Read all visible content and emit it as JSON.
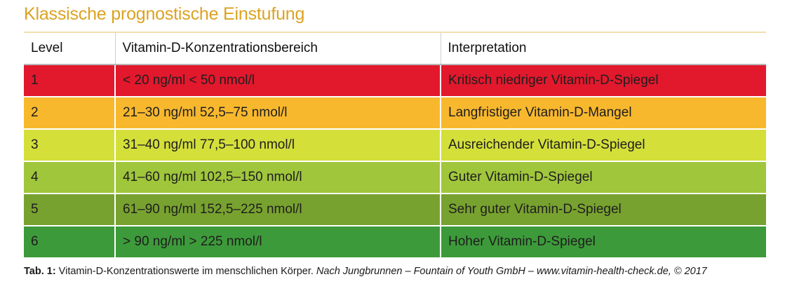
{
  "title": "Klassische prognostische Einstufung",
  "table": {
    "headers": [
      "Level",
      "Vitamin-D-Konzentrationsbereich",
      "Interpretation"
    ],
    "rows": [
      {
        "level": "1",
        "range": "< 20 ng/ml < 50 nmol/l",
        "interpretation": "Kritisch niedriger Vitamin-D-Spiegel",
        "color": "#e2182d"
      },
      {
        "level": "2",
        "range": "21–30 ng/ml 52,5–75 nmol/l",
        "interpretation": "Langfristiger Vitamin-D-Mangel",
        "color": "#f8b82e"
      },
      {
        "level": "3",
        "range": "31–40 ng/ml 77,5–100 nmol/l",
        "interpretation": "Ausreichender Vitamin-D-Spiegel",
        "color": "#d4df3a"
      },
      {
        "level": "4",
        "range": "41–60 ng/ml 102,5–150 nmol/l",
        "interpretation": "Guter Vitamin-D-Spiegel",
        "color": "#a0c63c"
      },
      {
        "level": "5",
        "range": "61–90 ng/ml 152,5–225 nmol/l",
        "interpretation": "Sehr guter Vitamin-D-Spiegel",
        "color": "#78a22f"
      },
      {
        "level": "6",
        "range": "> 90 ng/ml > 225 nmol/l",
        "interpretation": "Hoher Vitamin-D-Spiegel",
        "color": "#3d9a3a"
      }
    ]
  },
  "caption": {
    "label": "Tab. 1:",
    "text": " Vitamin-D-Konzentrationswerte im menschlichen Körper. ",
    "source": "Nach Jungbrunnen – Fountain of Youth GmbH – www.vitamin-health-check.de, © 2017"
  }
}
